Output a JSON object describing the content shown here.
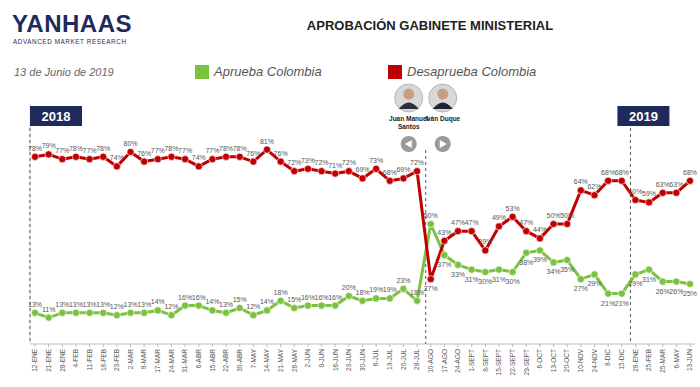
{
  "chart_data": {
    "type": "line",
    "title": "APROBACIÓN GABINETE MINISTERIAL",
    "subtitle": "13 de Junio de 2019",
    "brand": "YANHAAS",
    "brand_tagline": "ADVANCED MARKET RESEARCH",
    "categories": [
      "12-ENE",
      "21-ENE",
      "28-ENE",
      "4-FEB",
      "11-FEB",
      "18-FEB",
      "23-FEB",
      "2-MAR",
      "9-MAR",
      "17-MAR",
      "24-MAR",
      "31-MAR",
      "6-ABR",
      "15-ABR",
      "22-ABR",
      "30-ABR",
      "7-MAY",
      "14-MAY",
      "21-MAY",
      "28-MAY",
      "2-JUN",
      "9-JUN",
      "16-JUN",
      "23-JUN",
      "30-JUN",
      "6-JUL",
      "13-JUL",
      "20-JUL",
      "28-JUL",
      "10-AGO",
      "17-AGO",
      "24-AGO",
      "1-SEPT",
      "8-SEPT",
      "15-SEPT",
      "22-SEPT",
      "29-SEPT",
      "6-OCT",
      "13-OCT",
      "20-OCT",
      "10-NOV",
      "24-NOV",
      "8-DIC",
      "15-DIC",
      "28-ENE",
      "25-FEB",
      "25-MAR",
      "6-MAY",
      "13-JUN"
    ],
    "series": [
      {
        "name": "Aprueba Colombia",
        "color": "#7cc242",
        "values": [
          13,
          11,
          13,
          13,
          13,
          13,
          12,
          13,
          13,
          14,
          12,
          16,
          16,
          14,
          13,
          15,
          12,
          14,
          18,
          15,
          16,
          16,
          16,
          20,
          18,
          19,
          19,
          23,
          18,
          50,
          37,
          33,
          31,
          30,
          31,
          30,
          38,
          39,
          34,
          35,
          27,
          29,
          21,
          21,
          29,
          31,
          26,
          26,
          25
        ],
        "value_labels": [
          "13%",
          "11%",
          "13%",
          "13%",
          "13%",
          "13%",
          "12%",
          "13%",
          "13%",
          "14%",
          "12%",
          "16%",
          "16%",
          "14%",
          "13%",
          "15%",
          "12%",
          "14%",
          "18%",
          "15%",
          "16%",
          "16%",
          "16%",
          "20%",
          "18%",
          "19%",
          "19%",
          "23%",
          "18%",
          "50%",
          "37%",
          "33%",
          "31%",
          "30%",
          "31%",
          "30%",
          "38%",
          "39%",
          "34%",
          "35%",
          "27%",
          "29%",
          "21%",
          "21%",
          "29%",
          "31%",
          "26%",
          "26%",
          "25%"
        ]
      },
      {
        "name": "Desaprueba Colombia",
        "color": "#c00000",
        "values": [
          78,
          79,
          77,
          78,
          77,
          78,
          74,
          80,
          76,
          77,
          78,
          77,
          74,
          77,
          78,
          78,
          76,
          81,
          76,
          72,
          73,
          72,
          71,
          72,
          69,
          73,
          68,
          69,
          72,
          27,
          43,
          47,
          47,
          39,
          49,
          53,
          47,
          44,
          50,
          50,
          64,
          62,
          68,
          68,
          60,
          59,
          63,
          63,
          68
        ],
        "value_labels": [
          "78%",
          "79%",
          "77%",
          "78%",
          "77%",
          "78%",
          "74%",
          "80%",
          "76%",
          "77%",
          "78%",
          "77%",
          "74%",
          "77%",
          "78%",
          "78%",
          "76%",
          "81%",
          "76%",
          "72%",
          "73%",
          "72%",
          "71%",
          "72%",
          "69%",
          "73%",
          "68%",
          "69%",
          "72%",
          "27%",
          "43%",
          "47%",
          "47%",
          "39%",
          "49%",
          "53%",
          "47%",
          "44%",
          "50%",
          "50%",
          "64%",
          "62%",
          "68%",
          "68%",
          "60%",
          "59%",
          "63%",
          "63%",
          "68%"
        ]
      }
    ],
    "ylim": [
      0,
      100
    ],
    "tick_labels": "x",
    "data_labels": true,
    "legend": "top",
    "grid": false,
    "marker": "circle",
    "annotations": [
      {
        "text": "2018"
      },
      {
        "text": "2019"
      },
      {
        "text": "Juan Manuel Santos"
      },
      {
        "text": "Iván Duque"
      }
    ]
  }
}
